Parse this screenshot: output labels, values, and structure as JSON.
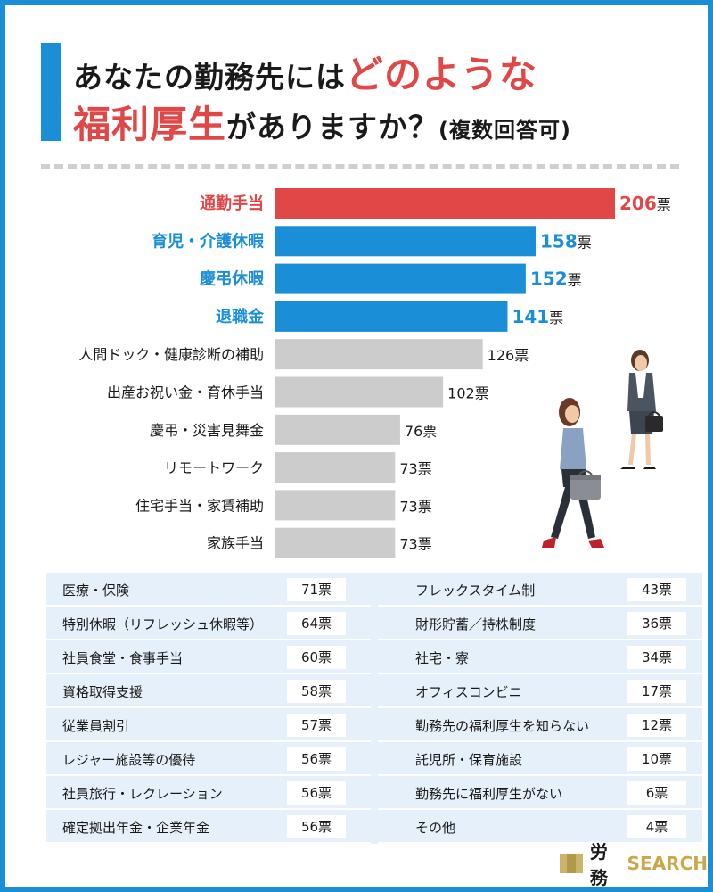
{
  "title": {
    "line1_prefix": "あなたの勤務先には",
    "line1_highlight": "どのような",
    "line2_highlight": "福利厚生",
    "line2_suffix": "がありますか？",
    "line2_note": "(複数回答可)"
  },
  "unit": "票",
  "colors": {
    "red": "#e04848",
    "blue": "#1a8fd8",
    "gray": "#cccccc",
    "table_bg": "#e6f0fa"
  },
  "chart_data": {
    "type": "bar",
    "orientation": "horizontal",
    "categories": [
      "通勤手当",
      "育児・介護休暇",
      "慶弔休暇",
      "退職金",
      "人間ドック・健康診断の補助",
      "出産お祝い金・育休手当",
      "慶弔・災害見舞金",
      "リモートワーク",
      "住宅手当・家賃補助",
      "家族手当"
    ],
    "values": [
      206,
      158,
      152,
      141,
      126,
      102,
      76,
      73,
      73,
      73
    ],
    "highlight": [
      "red",
      "blue",
      "blue",
      "blue",
      "gray",
      "gray",
      "gray",
      "gray",
      "gray",
      "gray"
    ],
    "value_labels": [
      "206",
      "158",
      "152",
      "141",
      "126",
      "102",
      "76",
      "73",
      "73",
      "73"
    ],
    "xlim": [
      0,
      206
    ],
    "grid": false
  },
  "table": {
    "left": [
      {
        "name": "医療・保険",
        "value": "71票"
      },
      {
        "name": "特別休暇（リフレッシュ休暇等）",
        "value": "64票"
      },
      {
        "name": "社員食堂・食事手当",
        "value": "60票"
      },
      {
        "name": "資格取得支援",
        "value": "58票"
      },
      {
        "name": "従業員割引",
        "value": "57票"
      },
      {
        "name": "レジャー施設等の優待",
        "value": "56票"
      },
      {
        "name": "社員旅行・レクレーション",
        "value": "56票"
      },
      {
        "name": "確定拠出年金・企業年金",
        "value": "56票"
      }
    ],
    "right": [
      {
        "name": "フレックスタイム制",
        "value": "43票"
      },
      {
        "name": "財形貯蓄／持株制度",
        "value": "36票"
      },
      {
        "name": "社宅・寮",
        "value": "34票"
      },
      {
        "name": "オフィスコンビニ",
        "value": "17票"
      },
      {
        "name": "勤務先の福利厚生を知らない",
        "value": "12票"
      },
      {
        "name": "託児所・保育施設",
        "value": "10票"
      },
      {
        "name": "勤務先に福利厚生がない",
        "value": "6票"
      },
      {
        "name": "その他",
        "value": "4票"
      }
    ]
  },
  "brand": {
    "jp": "労務",
    "en": "SEARCH"
  }
}
